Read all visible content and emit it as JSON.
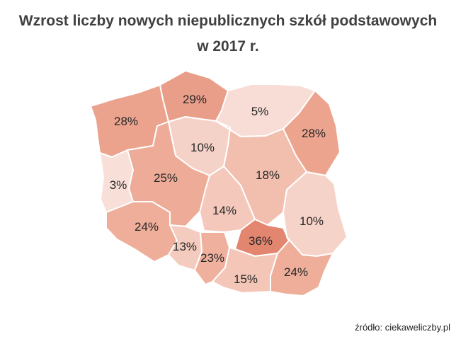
{
  "title_line1": "Wzrost liczby nowych niepublicznych szkół podstawowych",
  "title_line2": "w 2017 r.",
  "source": "źródło: ciekaweliczby.pl",
  "colors": {
    "background": "#ffffff",
    "title": "#404040",
    "border": "#ffffff",
    "scale_low": "#f8ddd6",
    "scale_mid": "#eea994",
    "scale_high": "#e38670"
  },
  "regions": [
    {
      "id": "zachodniopomorskie",
      "label": "28%",
      "value": 28,
      "color": "#eba38e"
    },
    {
      "id": "pomorskie",
      "label": "29%",
      "value": 29,
      "color": "#e99e89"
    },
    {
      "id": "warminsko-mazurskie",
      "label": "5%",
      "value": 5,
      "color": "#f8ddd6"
    },
    {
      "id": "podlaskie",
      "label": "28%",
      "value": 28,
      "color": "#eca48f"
    },
    {
      "id": "kujawsko-pomorskie",
      "label": "10%",
      "value": 10,
      "color": "#f5d2c7"
    },
    {
      "id": "lubuskie",
      "label": "3%",
      "value": 3,
      "color": "#f8dfd8"
    },
    {
      "id": "wielkopolskie",
      "label": "25%",
      "value": 25,
      "color": "#eeac98"
    },
    {
      "id": "mazowieckie",
      "label": "18%",
      "value": 18,
      "color": "#f2bfaf"
    },
    {
      "id": "lodzkie",
      "label": "14%",
      "value": 14,
      "color": "#f4c9bc"
    },
    {
      "id": "lubelskie",
      "label": "10%",
      "value": 10,
      "color": "#f6d3c9"
    },
    {
      "id": "dolnoslaskie",
      "label": "24%",
      "value": 24,
      "color": "#eeae9a"
    },
    {
      "id": "opolskie",
      "label": "13%",
      "value": 13,
      "color": "#f4cbbf"
    },
    {
      "id": "slaskie",
      "label": "23%",
      "value": 23,
      "color": "#efb19e"
    },
    {
      "id": "swietokrzyskie",
      "label": "36%",
      "value": 36,
      "color": "#e38670"
    },
    {
      "id": "malopolskie",
      "label": "15%",
      "value": 15,
      "color": "#f3c6b8"
    },
    {
      "id": "podkarpackie",
      "label": "24%",
      "value": 24,
      "color": "#eeae9a"
    }
  ]
}
